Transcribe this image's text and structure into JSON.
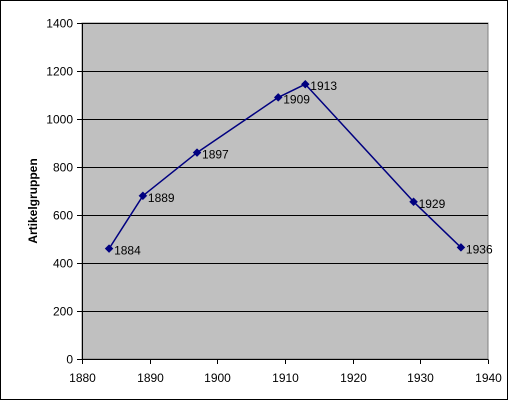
{
  "chart_data": {
    "type": "line",
    "title": "",
    "xlabel": "",
    "ylabel": "Artikelgruppen",
    "xlim": [
      1880,
      1940
    ],
    "ylim": [
      0,
      1400
    ],
    "x_ticks": [
      1880,
      1890,
      1900,
      1910,
      1920,
      1930,
      1940
    ],
    "y_ticks": [
      0,
      200,
      400,
      600,
      800,
      1000,
      1200,
      1400
    ],
    "grid": "horizontal",
    "legend": "none",
    "colors": {
      "plot_background": "#c0c0c0",
      "line": "#000080",
      "gridline": "#000000"
    },
    "marker": "diamond",
    "series": [
      {
        "x": [
          1884,
          1889,
          1897,
          1909,
          1913,
          1929,
          1936
        ],
        "values": [
          460,
          680,
          860,
          1090,
          1145,
          655,
          465
        ],
        "point_labels": [
          "1884",
          "1889",
          "1897",
          "1909",
          "1913",
          "1929",
          "1936"
        ]
      }
    ]
  }
}
